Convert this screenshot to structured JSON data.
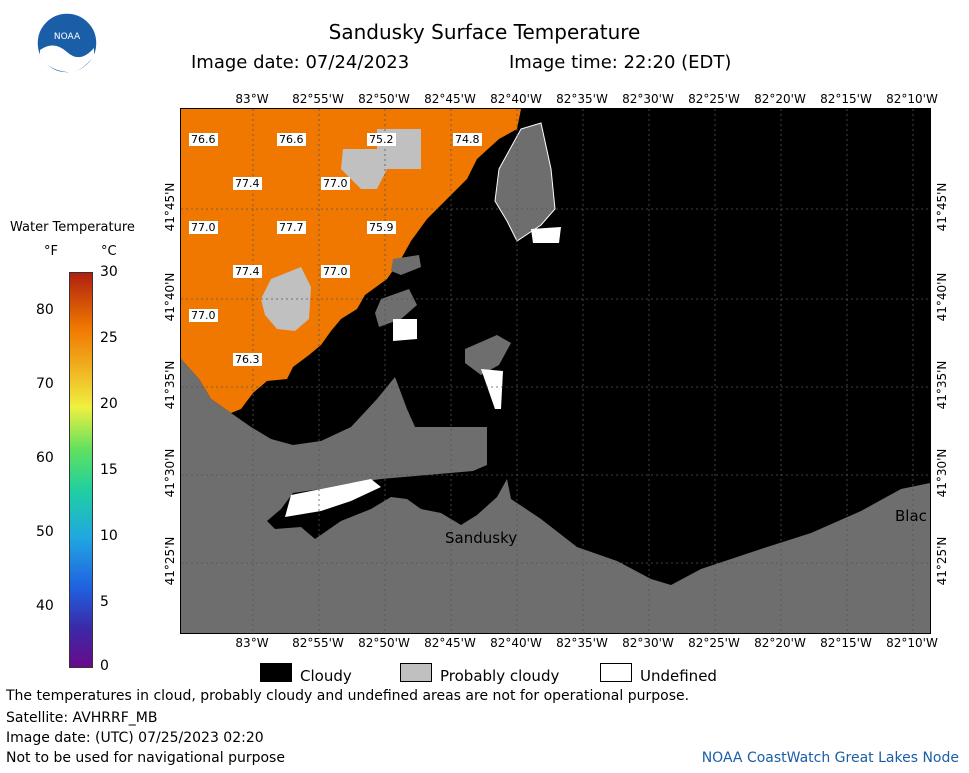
{
  "header": {
    "title": "Sandusky Surface Temperature",
    "image_date": "Image date: 07/24/2023",
    "image_time": "Image time: 22:20 (EDT)",
    "logo_text": "NOAA"
  },
  "colorbar": {
    "title": "Water Temperature",
    "unit_f": "°F",
    "unit_c": "°C",
    "f_ticks": [
      "80",
      "70",
      "60",
      "50",
      "40"
    ],
    "c_ticks": [
      "30",
      "25",
      "20",
      "15",
      "10",
      "5",
      "0"
    ]
  },
  "map": {
    "lon_labels": [
      "83°W",
      "82°55'W",
      "82°50'W",
      "82°45'W",
      "82°40'W",
      "82°35'W",
      "82°30'W",
      "82°25'W",
      "82°20'W",
      "82°15'W",
      "82°10'W"
    ],
    "lat_labels": [
      "41°45'N",
      "41°40'N",
      "41°35'N",
      "41°30'N",
      "41°25'N"
    ],
    "place_sandusky": "Sandusky",
    "place_blac": "Blac",
    "temps": [
      "76.6",
      "76.6",
      "75.2",
      "74.8",
      "77.4",
      "77.0",
      "77.0",
      "77.7",
      "75.9",
      "77.4",
      "77.0",
      "77.0",
      "76.3"
    ],
    "colors": {
      "water": "#f07800",
      "cloudy": "#000000",
      "probably_cloudy": "#c0c0c0",
      "land": "#6e6e6e",
      "undefined": "#ffffff"
    }
  },
  "legend": {
    "cloudy": "Cloudy",
    "probably_cloudy": "Probably cloudy",
    "undefined": "Undefined"
  },
  "footer": {
    "note": "The temperatures in cloud, probably cloudy and undefined areas are not for operational purpose.",
    "satellite": "Satellite: AVHRRF_MB",
    "utc_date": "Image date: (UTC) 07/25/2023  02:20",
    "nav": "Not to be used for navigational purpose",
    "credit": "NOAA CoastWatch Great Lakes Node"
  }
}
